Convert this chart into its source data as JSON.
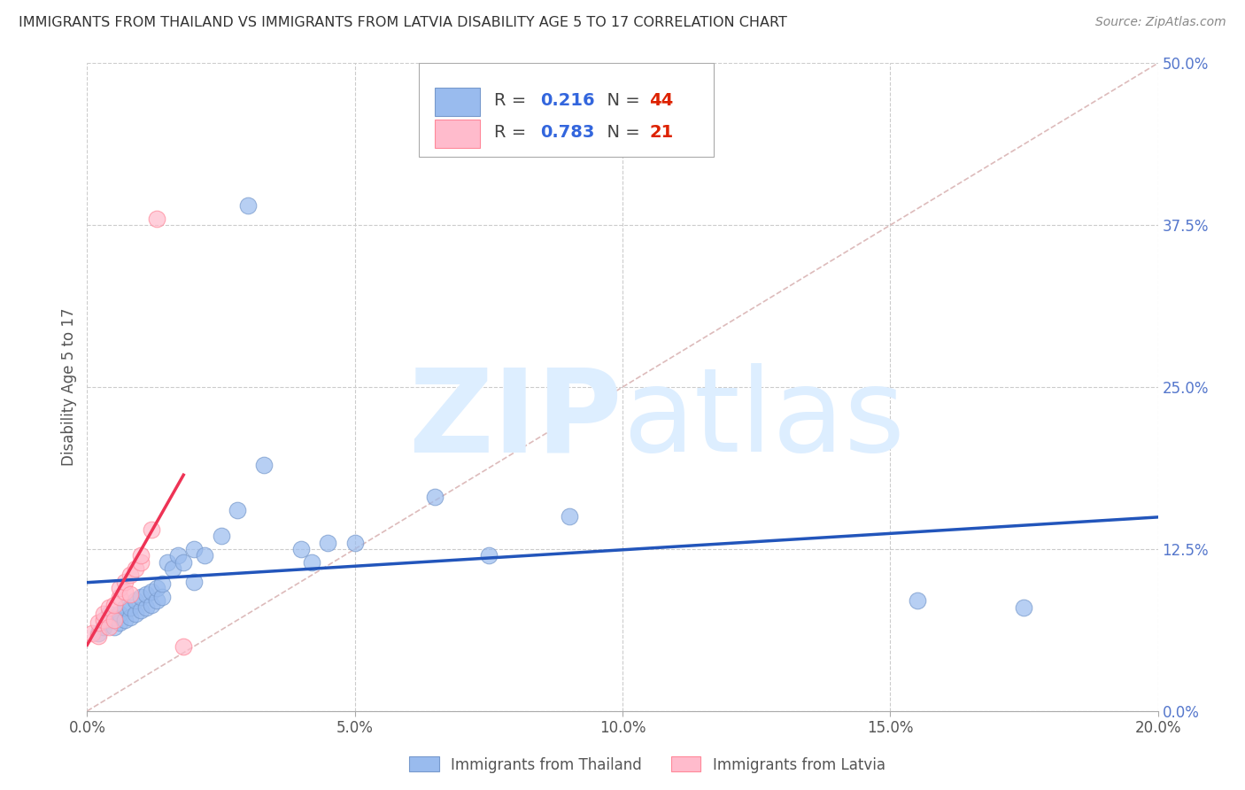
{
  "title": "IMMIGRANTS FROM THAILAND VS IMMIGRANTS FROM LATVIA DISABILITY AGE 5 TO 17 CORRELATION CHART",
  "source": "Source: ZipAtlas.com",
  "ylabel": "Disability Age 5 to 17",
  "xlim": [
    0.0,
    0.2
  ],
  "ylim": [
    0.0,
    0.5
  ],
  "xticks": [
    0.0,
    0.05,
    0.1,
    0.15,
    0.2
  ],
  "xtick_labels": [
    "0.0%",
    "5.0%",
    "10.0%",
    "15.0%",
    "20.0%"
  ],
  "yticks_right": [
    0.0,
    0.125,
    0.25,
    0.375,
    0.5
  ],
  "ytick_labels_right": [
    "0.0%",
    "12.5%",
    "25.0%",
    "37.5%",
    "50.0%"
  ],
  "gridline_color": "#cccccc",
  "background_color": "#ffffff",
  "thailand_color": "#99bbee",
  "thailand_edge_color": "#7799cc",
  "latvia_color": "#ffbbcc",
  "latvia_edge_color": "#ff8899",
  "thailand_line_color": "#2255bb",
  "latvia_line_color": "#ee3355",
  "ref_line_color": "#ddbbbb",
  "thailand_R": 0.216,
  "thailand_N": 44,
  "latvia_R": 0.783,
  "latvia_N": 21,
  "thailand_scatter_x": [
    0.002,
    0.003,
    0.004,
    0.004,
    0.005,
    0.005,
    0.006,
    0.006,
    0.007,
    0.007,
    0.008,
    0.008,
    0.009,
    0.009,
    0.01,
    0.01,
    0.011,
    0.011,
    0.012,
    0.012,
    0.013,
    0.013,
    0.014,
    0.014,
    0.015,
    0.016,
    0.017,
    0.018,
    0.02,
    0.02,
    0.022,
    0.025,
    0.028,
    0.03,
    0.033,
    0.04,
    0.042,
    0.045,
    0.05,
    0.065,
    0.075,
    0.09,
    0.155,
    0.175
  ],
  "thailand_scatter_y": [
    0.06,
    0.065,
    0.07,
    0.075,
    0.065,
    0.072,
    0.068,
    0.075,
    0.07,
    0.08,
    0.072,
    0.08,
    0.075,
    0.085,
    0.078,
    0.088,
    0.08,
    0.09,
    0.082,
    0.092,
    0.085,
    0.095,
    0.088,
    0.098,
    0.115,
    0.11,
    0.12,
    0.115,
    0.125,
    0.1,
    0.12,
    0.135,
    0.155,
    0.39,
    0.19,
    0.125,
    0.115,
    0.13,
    0.13,
    0.165,
    0.12,
    0.15,
    0.085,
    0.08
  ],
  "latvia_scatter_x": [
    0.001,
    0.002,
    0.002,
    0.003,
    0.003,
    0.004,
    0.004,
    0.005,
    0.005,
    0.006,
    0.006,
    0.007,
    0.007,
    0.008,
    0.008,
    0.009,
    0.01,
    0.01,
    0.012,
    0.013,
    0.018
  ],
  "latvia_scatter_y": [
    0.06,
    0.058,
    0.068,
    0.07,
    0.075,
    0.065,
    0.08,
    0.07,
    0.082,
    0.088,
    0.095,
    0.092,
    0.1,
    0.09,
    0.105,
    0.11,
    0.115,
    0.12,
    0.14,
    0.38,
    0.05
  ],
  "watermark_zip": "ZIP",
  "watermark_atlas": "atlas",
  "watermark_color": "#ddeeff"
}
